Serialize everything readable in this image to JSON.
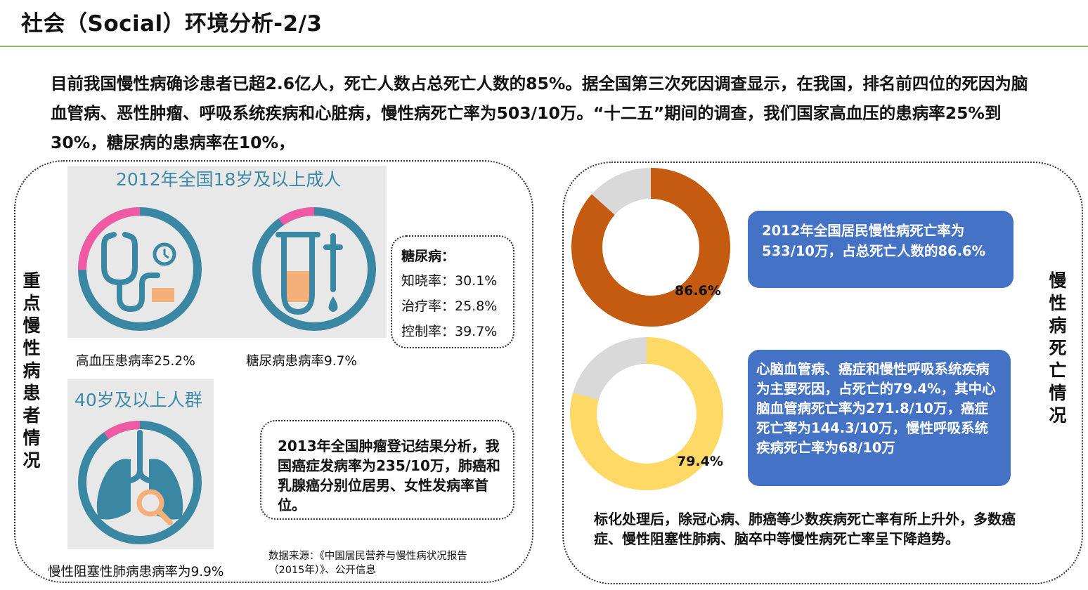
{
  "slide": {
    "title": "社会（Social）环境分析-2/3",
    "intro": "目前我国慢性病确诊患者已超2.6亿人，死亡人数占总死亡人数的85%。据全国第三次死因调查显示，在我国，排名前四位的死因为脑血管病、恶性肿瘤、呼吸系统疾病和心脏病，慢性病死亡率为503/10万。“十二五”期间的调查，我们国家高血压的患病率25%到30%，糖尿病的患病率在10%，"
  },
  "left_panel": {
    "vertical_label": "重点慢性病患者情况",
    "group1_title": "2012年全国18岁及以上成人",
    "hypertension_caption": "高血压患病率25.2%",
    "diabetes_caption": "糖尿病患病率9.7%",
    "group2_title": "40岁及以上人群",
    "copd_caption": "慢性阻塞性肺病患病率为9.9%",
    "gauges": {
      "hypertension_rate": 25.2,
      "diabetes_rate": 9.7,
      "copd_rate": 9.9,
      "track_color": "#3a87a3",
      "highlight_color": "#f05aa5",
      "accent_color": "#f5b07a"
    },
    "diabetes_box": {
      "title": "糖尿病：",
      "lines": [
        "知晓率：30.1%",
        "治疗率：25.8%",
        "控制率：39.7%"
      ]
    },
    "tumor_note": "2013年全国肿瘤登记结果分析，我国癌症发病率为235/10万，肺癌和乳腺癌分别位居男、女性发病率首位。",
    "source_note": "数据来源：《中国居民营养与慢性病状况报告（2015年）》、公开信息"
  },
  "right_panel": {
    "vertical_label": "慢性病死亡情况",
    "donut1": {
      "percent": 86.6,
      "label": "86.6%",
      "color": "#c55a11",
      "rest_color": "#d9d9d9"
    },
    "donut2": {
      "percent": 79.4,
      "label": "79.4%",
      "color": "#ffd966",
      "rest_color": "#d9d9d9"
    },
    "box1_text": "2012年全国居民慢性病死亡率为533/10万，占总死亡人数的86.6%",
    "box2_text": "心脑血管病、癌症和慢性呼吸系统疾病为主要死因，占死亡的79.4%，其中心脑血管病死亡率为271.8/10万，癌症死亡率为144.3/10万，慢性呼吸系统疾病死亡率为68/10万",
    "bottom_note": "标化处理后，除冠心病、肺癌等少数疾病死亡率有所上升外，多数癌症、慢性阻塞性肺病、脑卒中等慢性病死亡率呈下降趋势。"
  }
}
